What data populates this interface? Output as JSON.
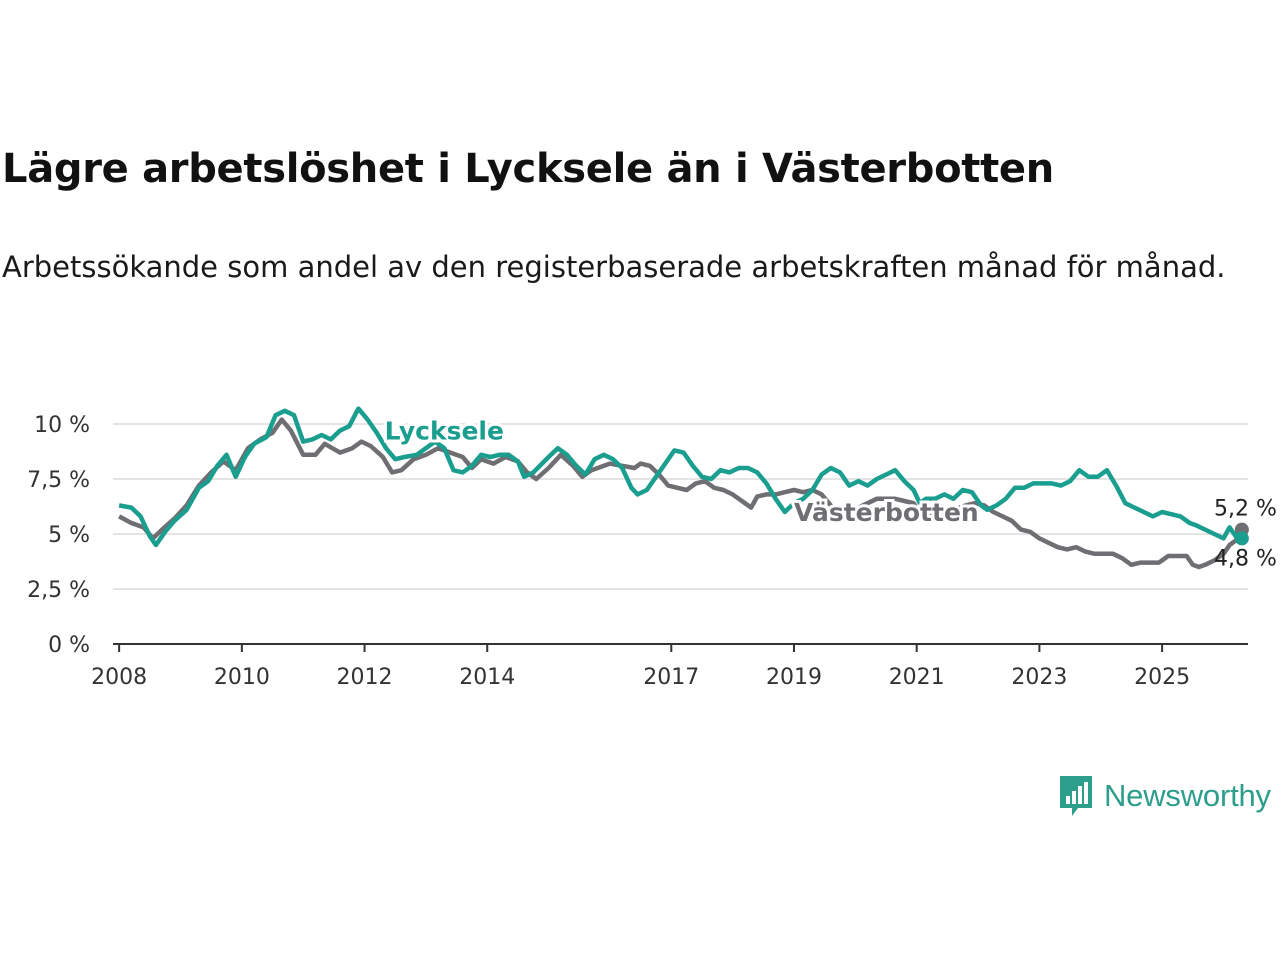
{
  "title": "Lägre arbetslöshet i Lycksele än i Västerbotten",
  "subtitle": "Arbetssökande som andel av den registerbaserade arbetskraften månad för månad.",
  "logo": {
    "text": "Newsworthy",
    "icon": "bar-chart-icon",
    "color": "#2e9e8c"
  },
  "chart_data": {
    "type": "line",
    "xlim": [
      2007.9,
      2026.4
    ],
    "ylim": [
      0,
      10
    ],
    "y_ticks": [
      0,
      2.5,
      5,
      7.5,
      10
    ],
    "y_tick_labels": [
      "0 %",
      "2,5 %",
      "5 %",
      "7,5 %",
      "10 %"
    ],
    "x_ticks": [
      2008,
      2010,
      2012,
      2014,
      2017,
      2019,
      2021,
      2023,
      2025
    ],
    "x_tick_labels": [
      "2008",
      "2010",
      "2012",
      "2014",
      "2017",
      "2019",
      "2021",
      "2023",
      "2025"
    ],
    "grid": true,
    "series": [
      {
        "name": "Västerbotten",
        "color": "#6e6e73",
        "end_label": "5,2 %",
        "points": [
          [
            2008.0,
            5.8
          ],
          [
            2008.2,
            5.5
          ],
          [
            2008.4,
            5.3
          ],
          [
            2008.55,
            4.8
          ],
          [
            2008.7,
            5.2
          ],
          [
            2008.9,
            5.7
          ],
          [
            2009.1,
            6.3
          ],
          [
            2009.3,
            7.2
          ],
          [
            2009.5,
            7.8
          ],
          [
            2009.7,
            8.3
          ],
          [
            2009.9,
            7.9
          ],
          [
            2010.1,
            8.9
          ],
          [
            2010.3,
            9.3
          ],
          [
            2010.5,
            9.6
          ],
          [
            2010.65,
            10.2
          ],
          [
            2010.8,
            9.7
          ],
          [
            2011.0,
            8.6
          ],
          [
            2011.2,
            8.6
          ],
          [
            2011.35,
            9.1
          ],
          [
            2011.6,
            8.7
          ],
          [
            2011.8,
            8.9
          ],
          [
            2011.95,
            9.2
          ],
          [
            2012.1,
            9.0
          ],
          [
            2012.3,
            8.5
          ],
          [
            2012.45,
            7.8
          ],
          [
            2012.6,
            7.9
          ],
          [
            2012.8,
            8.4
          ],
          [
            2013.0,
            8.6
          ],
          [
            2013.2,
            8.9
          ],
          [
            2013.4,
            8.7
          ],
          [
            2013.6,
            8.5
          ],
          [
            2013.75,
            8.0
          ],
          [
            2013.9,
            8.4
          ],
          [
            2014.1,
            8.2
          ],
          [
            2014.3,
            8.5
          ],
          [
            2014.5,
            8.3
          ],
          [
            2014.65,
            7.8
          ],
          [
            2014.8,
            7.5
          ],
          [
            2015.0,
            8.0
          ],
          [
            2015.2,
            8.6
          ],
          [
            2015.4,
            8.1
          ],
          [
            2015.55,
            7.6
          ],
          [
            2015.7,
            7.9
          ],
          [
            2016.0,
            8.2
          ],
          [
            2016.2,
            8.1
          ],
          [
            2016.4,
            8.0
          ],
          [
            2016.5,
            8.2
          ],
          [
            2016.65,
            8.1
          ],
          [
            2016.8,
            7.7
          ],
          [
            2016.95,
            7.2
          ],
          [
            2017.1,
            7.1
          ],
          [
            2017.25,
            7.0
          ],
          [
            2017.4,
            7.3
          ],
          [
            2017.55,
            7.4
          ],
          [
            2017.7,
            7.1
          ],
          [
            2017.85,
            7.0
          ],
          [
            2018.0,
            6.8
          ],
          [
            2018.15,
            6.5
          ],
          [
            2018.3,
            6.2
          ],
          [
            2018.4,
            6.7
          ],
          [
            2018.55,
            6.8
          ],
          [
            2018.7,
            6.8
          ],
          [
            2018.85,
            6.9
          ],
          [
            2019.0,
            7.0
          ],
          [
            2019.15,
            6.9
          ],
          [
            2019.3,
            7.0
          ],
          [
            2019.45,
            6.8
          ],
          [
            2019.6,
            6.3
          ],
          [
            2019.75,
            5.8
          ],
          [
            2019.9,
            6.1
          ],
          [
            2020.05,
            6.2
          ],
          [
            2020.2,
            6.4
          ],
          [
            2020.35,
            6.6
          ],
          [
            2020.5,
            6.6
          ],
          [
            2020.65,
            6.6
          ],
          [
            2020.8,
            6.5
          ],
          [
            2020.95,
            6.4
          ],
          [
            2021.1,
            5.8
          ],
          [
            2021.25,
            5.9
          ],
          [
            2021.4,
            6.0
          ],
          [
            2021.55,
            6.1
          ],
          [
            2021.7,
            6.2
          ],
          [
            2021.8,
            6.3
          ],
          [
            2021.95,
            6.4
          ],
          [
            2022.1,
            6.3
          ],
          [
            2022.25,
            6.0
          ],
          [
            2022.4,
            5.8
          ],
          [
            2022.55,
            5.6
          ],
          [
            2022.7,
            5.2
          ],
          [
            2022.85,
            5.1
          ],
          [
            2023.0,
            4.8
          ],
          [
            2023.15,
            4.6
          ],
          [
            2023.3,
            4.4
          ],
          [
            2023.45,
            4.3
          ],
          [
            2023.6,
            4.4
          ],
          [
            2023.75,
            4.2
          ],
          [
            2023.9,
            4.1
          ],
          [
            2024.05,
            4.1
          ],
          [
            2024.2,
            4.1
          ],
          [
            2024.35,
            3.9
          ],
          [
            2024.5,
            3.6
          ],
          [
            2024.65,
            3.7
          ],
          [
            2024.8,
            3.7
          ],
          [
            2024.95,
            3.7
          ],
          [
            2025.1,
            4.0
          ],
          [
            2025.25,
            4.0
          ],
          [
            2025.4,
            4.0
          ],
          [
            2025.5,
            3.6
          ],
          [
            2025.6,
            3.5
          ],
          [
            2025.7,
            3.6
          ],
          [
            2025.85,
            3.8
          ],
          [
            2026.0,
            4.1
          ],
          [
            2026.1,
            4.5
          ],
          [
            2026.2,
            4.7
          ],
          [
            2026.3,
            5.2
          ]
        ]
      },
      {
        "name": "Lycksele",
        "color": "#1a9e8f",
        "end_label": "4,8 %",
        "points": [
          [
            2008.0,
            6.3
          ],
          [
            2008.2,
            6.2
          ],
          [
            2008.35,
            5.8
          ],
          [
            2008.5,
            4.9
          ],
          [
            2008.6,
            4.5
          ],
          [
            2008.75,
            5.1
          ],
          [
            2008.9,
            5.6
          ],
          [
            2009.1,
            6.1
          ],
          [
            2009.3,
            7.1
          ],
          [
            2009.45,
            7.4
          ],
          [
            2009.6,
            8.1
          ],
          [
            2009.75,
            8.6
          ],
          [
            2009.9,
            7.6
          ],
          [
            2010.05,
            8.5
          ],
          [
            2010.2,
            9.1
          ],
          [
            2010.4,
            9.4
          ],
          [
            2010.55,
            10.4
          ],
          [
            2010.7,
            10.6
          ],
          [
            2010.85,
            10.4
          ],
          [
            2011.0,
            9.2
          ],
          [
            2011.15,
            9.3
          ],
          [
            2011.3,
            9.5
          ],
          [
            2011.45,
            9.3
          ],
          [
            2011.6,
            9.7
          ],
          [
            2011.75,
            9.9
          ],
          [
            2011.9,
            10.7
          ],
          [
            2012.05,
            10.2
          ],
          [
            2012.2,
            9.6
          ],
          [
            2012.35,
            8.9
          ],
          [
            2012.5,
            8.4
          ],
          [
            2012.65,
            8.5
          ],
          [
            2012.85,
            8.6
          ],
          [
            2013.0,
            8.9
          ],
          [
            2013.15,
            9.2
          ],
          [
            2013.3,
            8.9
          ],
          [
            2013.45,
            7.9
          ],
          [
            2013.6,
            7.8
          ],
          [
            2013.75,
            8.1
          ],
          [
            2013.9,
            8.6
          ],
          [
            2014.05,
            8.5
          ],
          [
            2014.2,
            8.6
          ],
          [
            2014.35,
            8.6
          ],
          [
            2014.5,
            8.3
          ],
          [
            2014.6,
            7.6
          ],
          [
            2014.75,
            7.8
          ],
          [
            2015.0,
            8.5
          ],
          [
            2015.15,
            8.9
          ],
          [
            2015.3,
            8.6
          ],
          [
            2015.45,
            8.1
          ],
          [
            2015.6,
            7.7
          ],
          [
            2015.75,
            8.4
          ],
          [
            2015.9,
            8.6
          ],
          [
            2016.05,
            8.4
          ],
          [
            2016.2,
            8.0
          ],
          [
            2016.35,
            7.1
          ],
          [
            2016.45,
            6.8
          ],
          [
            2016.6,
            7.0
          ],
          [
            2016.75,
            7.6
          ],
          [
            2016.9,
            8.2
          ],
          [
            2017.05,
            8.8
          ],
          [
            2017.2,
            8.7
          ],
          [
            2017.35,
            8.1
          ],
          [
            2017.5,
            7.6
          ],
          [
            2017.65,
            7.5
          ],
          [
            2017.8,
            7.9
          ],
          [
            2017.95,
            7.8
          ],
          [
            2018.1,
            8.0
          ],
          [
            2018.25,
            8.0
          ],
          [
            2018.4,
            7.8
          ],
          [
            2018.55,
            7.3
          ],
          [
            2018.7,
            6.6
          ],
          [
            2018.85,
            6.0
          ],
          [
            2019.0,
            6.4
          ],
          [
            2019.15,
            6.6
          ],
          [
            2019.3,
            7.0
          ],
          [
            2019.45,
            7.7
          ],
          [
            2019.6,
            8.0
          ],
          [
            2019.75,
            7.8
          ],
          [
            2019.9,
            7.2
          ],
          [
            2020.05,
            7.4
          ],
          [
            2020.2,
            7.2
          ],
          [
            2020.35,
            7.5
          ],
          [
            2020.5,
            7.7
          ],
          [
            2020.65,
            7.9
          ],
          [
            2020.8,
            7.4
          ],
          [
            2020.95,
            7.0
          ],
          [
            2021.05,
            6.4
          ],
          [
            2021.15,
            6.6
          ],
          [
            2021.3,
            6.6
          ],
          [
            2021.45,
            6.8
          ],
          [
            2021.6,
            6.6
          ],
          [
            2021.75,
            7.0
          ],
          [
            2021.9,
            6.9
          ],
          [
            2022.05,
            6.3
          ],
          [
            2022.15,
            6.1
          ],
          [
            2022.3,
            6.3
          ],
          [
            2022.45,
            6.6
          ],
          [
            2022.6,
            7.1
          ],
          [
            2022.75,
            7.1
          ],
          [
            2022.9,
            7.3
          ],
          [
            2023.05,
            7.3
          ],
          [
            2023.2,
            7.3
          ],
          [
            2023.35,
            7.2
          ],
          [
            2023.5,
            7.4
          ],
          [
            2023.65,
            7.9
          ],
          [
            2023.8,
            7.6
          ],
          [
            2023.95,
            7.6
          ],
          [
            2024.1,
            7.9
          ],
          [
            2024.25,
            7.2
          ],
          [
            2024.4,
            6.4
          ],
          [
            2024.55,
            6.2
          ],
          [
            2024.7,
            6.0
          ],
          [
            2024.85,
            5.8
          ],
          [
            2025.0,
            6.0
          ],
          [
            2025.15,
            5.9
          ],
          [
            2025.3,
            5.8
          ],
          [
            2025.45,
            5.5
          ],
          [
            2025.55,
            5.4
          ],
          [
            2025.7,
            5.2
          ],
          [
            2025.85,
            5.0
          ],
          [
            2026.0,
            4.8
          ],
          [
            2026.1,
            5.3
          ],
          [
            2026.2,
            4.9
          ],
          [
            2026.3,
            4.8
          ]
        ]
      }
    ],
    "annotations": [
      {
        "text": "Lycksele",
        "series": "Lycksele",
        "x": 2013.3,
        "y": 9.2
      },
      {
        "text": "Västerbotten",
        "series": "Västerbotten",
        "x": 2019.0,
        "y": 5.5
      }
    ]
  }
}
